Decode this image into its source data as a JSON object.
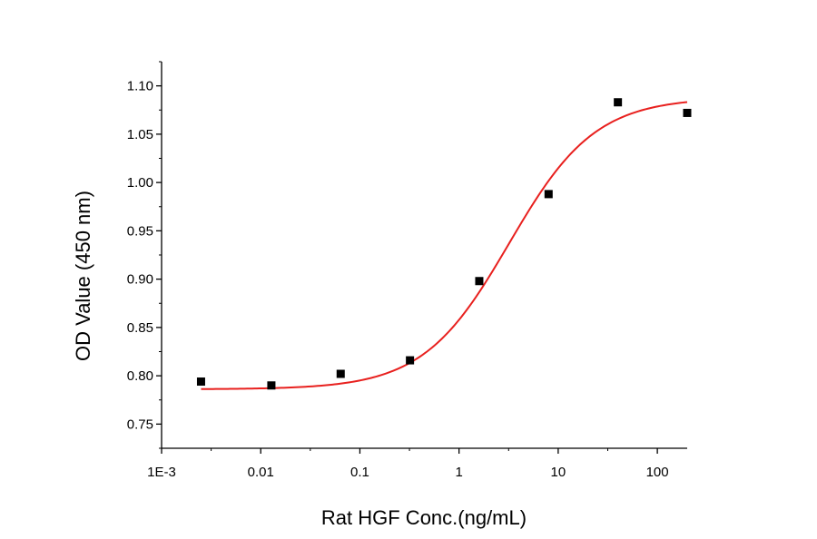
{
  "chart_data": {
    "type": "scatter",
    "title": "",
    "xlabel": "Rat HGF Conc.(ng/mL)",
    "ylabel": "OD Value (450 nm)",
    "xscale": "log",
    "xlim": [
      0.001,
      200
    ],
    "ylim": [
      0.725,
      1.125
    ],
    "xticks": [
      {
        "value": 0.001,
        "label": "1E-3"
      },
      {
        "value": 0.01,
        "label": "0.01"
      },
      {
        "value": 0.1,
        "label": "0.1"
      },
      {
        "value": 1,
        "label": "1"
      },
      {
        "value": 10,
        "label": "10"
      },
      {
        "value": 100,
        "label": "100"
      }
    ],
    "yticks": [
      {
        "value": 0.75,
        "label": "0.75"
      },
      {
        "value": 0.8,
        "label": "0.80"
      },
      {
        "value": 0.85,
        "label": "0.85"
      },
      {
        "value": 0.9,
        "label": "0.90"
      },
      {
        "value": 0.95,
        "label": "0.95"
      },
      {
        "value": 1.0,
        "label": "1.00"
      },
      {
        "value": 1.05,
        "label": "1.05"
      },
      {
        "value": 1.1,
        "label": "1.10"
      }
    ],
    "points": [
      {
        "x": 0.0025,
        "y": 0.794
      },
      {
        "x": 0.0128,
        "y": 0.79
      },
      {
        "x": 0.064,
        "y": 0.802
      },
      {
        "x": 0.32,
        "y": 0.816
      },
      {
        "x": 1.6,
        "y": 0.898
      },
      {
        "x": 8.0,
        "y": 0.988
      },
      {
        "x": 40,
        "y": 1.083
      },
      {
        "x": 200,
        "y": 1.072
      }
    ],
    "fit": {
      "model": "4PL",
      "bottom": 0.786,
      "top": 1.088,
      "ec50": 3.2,
      "hill": 1.0,
      "x_range": [
        0.0025,
        200
      ]
    },
    "marker_color": "#000000",
    "fit_color": "#e8201e",
    "grid": false,
    "legend": "none"
  }
}
